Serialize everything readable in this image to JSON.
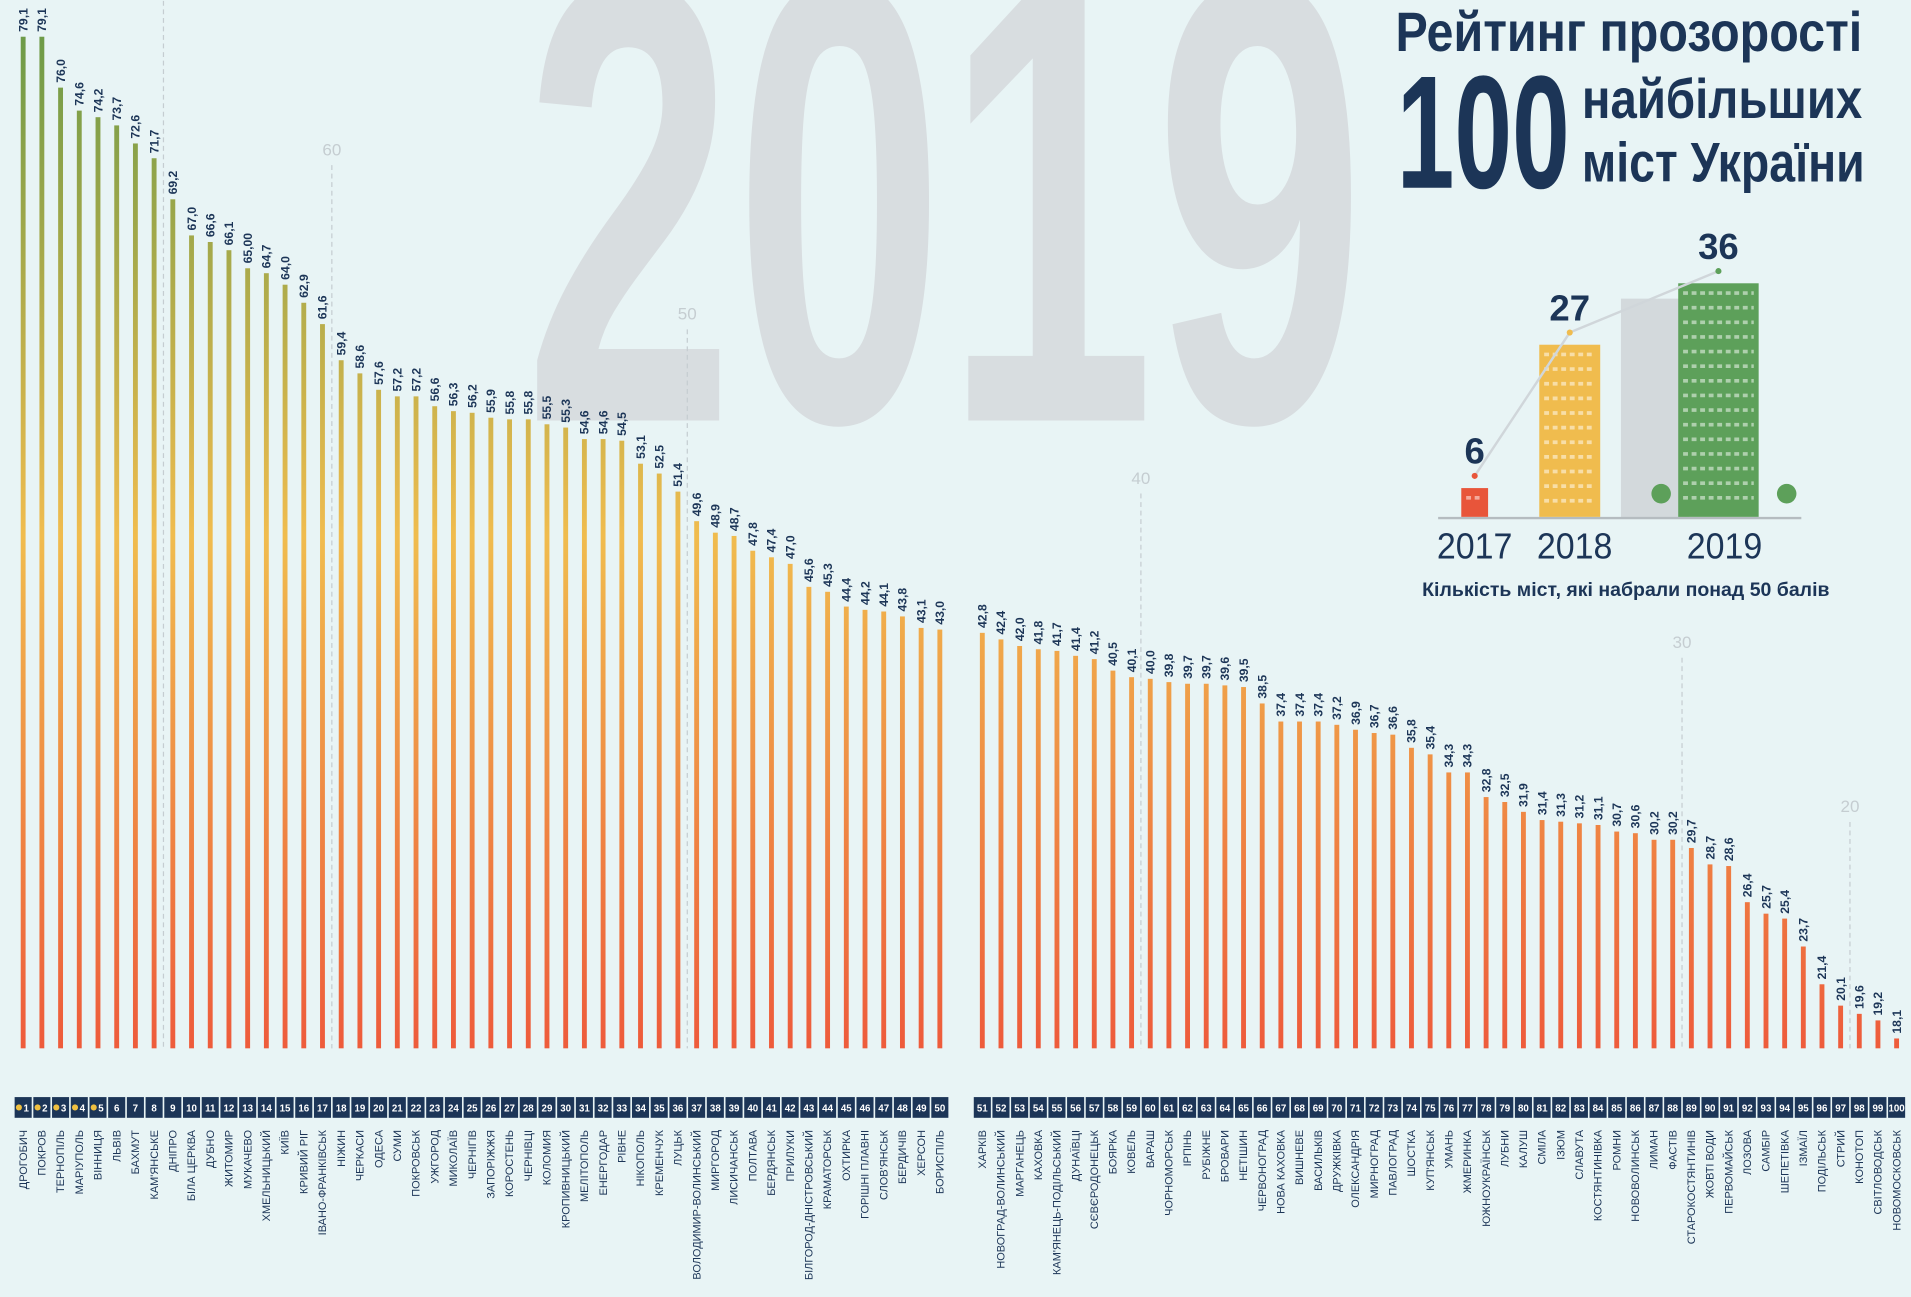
{
  "chart_data": [
    {
      "type": "bar",
      "watermark": "2019",
      "title": "Рейтинг прозорості",
      "title_number": "100",
      "title_line2": "найбільших",
      "title_line3": "міст України",
      "categories": [
        "ДРОГОБИЧ",
        "ПОКРОВ",
        "ТЕРНОПІЛЬ",
        "МАРІУПОЛЬ",
        "ВІННИЦЯ",
        "ЛЬВІВ",
        "БАХМУТ",
        "КАМ'ЯНСЬКЕ",
        "ДНІПРО",
        "БІЛА ЦЕРКВА",
        "ДУБНО",
        "ЖИТОМИР",
        "МУКАЧЕВО",
        "ХМЕЛЬНИЦЬКИЙ",
        "КИЇВ",
        "КРИВИЙ РІГ",
        "ІВАНО-ФРАНКІВСЬК",
        "НІЖИН",
        "ЧЕРКАСИ",
        "ОДЕСА",
        "СУМИ",
        "ПОКРОВСЬК",
        "УЖГОРОД",
        "МИКОЛАЇВ",
        "ЧЕРНІГІВ",
        "ЗАПОРІЖЖЯ",
        "КОРОСТЕНЬ",
        "ЧЕРНІВЦІ",
        "КОЛОМИЯ",
        "КРОПИВНИЦЬКИЙ",
        "МЕЛІТОПОЛЬ",
        "ЕНЕРГОДАР",
        "РІВНЕ",
        "НІКОПОЛЬ",
        "КРЕМЕНЧУК",
        "ЛУЦЬК",
        "ВОЛОДИМИР-ВОЛИНСЬКИЙ",
        "МИРГОРОД",
        "ЛИСИЧАНСЬК",
        "ПОЛТАВА",
        "БЕРДЯНСЬК",
        "ПРИЛУКИ",
        "БІЛГОРОД-ДНІСТРОВСЬКИЙ",
        "КРАМАТОРСЬК",
        "ОХТИРКА",
        "ГОРІШНІ ПЛАВНІ",
        "СЛОВ'ЯНСЬК",
        "БЕРДИЧІВ",
        "ХЕРСОН",
        "БОРИСПІЛЬ",
        "ХАРКІВ",
        "НОВОГРАД-ВОЛИНСЬКИЙ",
        "МАРГАНЕЦЬ",
        "КАХОВКА",
        "КАМ'ЯНЕЦЬ-ПОДІЛЬСЬКИЙ",
        "ДУНАЇВЦІ",
        "СЄВЄРОДОНЕЦЬК",
        "БОЯРКА",
        "КОВЕЛЬ",
        "ВАРАШ",
        "ЧОРНОМОРСЬК",
        "ІРПІНЬ",
        "РУБІЖНЕ",
        "БРОВАРИ",
        "НЕТІШИН",
        "ЧЕРВОНОГРАД",
        "НОВА КАХОВКА",
        "ВИШНЕВЕ",
        "ВАСИЛЬКІВ",
        "ДРУЖКІВКА",
        "ОЛЕКСАНДРІЯ",
        "МИРНОГРАД",
        "ПАВЛОГРАД",
        "ШОСТКА",
        "КУП'ЯНСЬК",
        "УМАНЬ",
        "ЖМЕРИНКА",
        "ЮЖНОУКРАЇНСЬК",
        "ЛУБНИ",
        "КАЛУШ",
        "СМІЛА",
        "ІЗЮМ",
        "СЛАВУТА",
        "КОСТЯНТИНІВКА",
        "РОМНИ",
        "НОВОВОЛИНСЬК",
        "ЛИМАН",
        "ФАСТІВ",
        "СТАРОКОСТЯНТИНІВ",
        "ЖОВТІ ВОДИ",
        "ПЕРВОМАЙСЬК",
        "ЛОЗОВА",
        "САМБІР",
        "ШЕПЕТІВКА",
        "ІЗМАЇЛ",
        "ПОДІЛЬСЬК",
        "СТРИЙ",
        "КОНОТОП",
        "СВІТЛОВОДСЬК",
        "НОВОМОСКОВСЬК"
      ],
      "ranks": [
        1,
        2,
        3,
        4,
        5,
        6,
        7,
        8,
        9,
        10,
        11,
        12,
        13,
        14,
        15,
        16,
        17,
        18,
        19,
        20,
        21,
        22,
        23,
        24,
        25,
        26,
        27,
        28,
        29,
        30,
        31,
        32,
        33,
        34,
        35,
        36,
        37,
        38,
        39,
        40,
        41,
        42,
        43,
        44,
        45,
        46,
        47,
        48,
        49,
        50,
        51,
        52,
        53,
        54,
        55,
        56,
        57,
        58,
        59,
        60,
        61,
        62,
        63,
        64,
        65,
        66,
        67,
        68,
        69,
        70,
        71,
        72,
        73,
        74,
        75,
        76,
        77,
        78,
        79,
        80,
        81,
        82,
        83,
        84,
        85,
        86,
        87,
        88,
        89,
        90,
        91,
        92,
        93,
        94,
        95,
        96,
        97,
        98,
        99,
        100
      ],
      "values": [
        79.1,
        79.1,
        76.0,
        74.6,
        74.2,
        73.7,
        72.6,
        71.7,
        69.2,
        67.0,
        66.6,
        66.1,
        65.0,
        64.7,
        64.0,
        62.9,
        61.6,
        59.4,
        58.6,
        57.6,
        57.2,
        57.2,
        56.6,
        56.3,
        56.2,
        55.9,
        55.8,
        55.8,
        55.5,
        55.3,
        54.6,
        54.6,
        54.5,
        53.1,
        52.5,
        51.4,
        49.6,
        48.9,
        48.7,
        47.8,
        47.4,
        47.0,
        45.6,
        45.3,
        44.4,
        44.2,
        44.1,
        43.8,
        43.1,
        43.0,
        42.8,
        42.4,
        42.0,
        41.8,
        41.7,
        41.4,
        41.2,
        40.5,
        40.1,
        40.0,
        39.8,
        39.7,
        39.7,
        39.6,
        39.5,
        38.5,
        37.4,
        37.4,
        37.4,
        37.2,
        36.9,
        36.7,
        36.6,
        35.8,
        35.4,
        34.3,
        34.3,
        32.8,
        32.5,
        31.9,
        31.4,
        31.3,
        31.2,
        31.1,
        30.7,
        30.6,
        30.2,
        30.2,
        29.7,
        28.7,
        28.6,
        26.4,
        25.7,
        25.4,
        23.7,
        21.4,
        20.1,
        19.6,
        19.2,
        18.1
      ],
      "value_labels": [
        "79,1",
        "79,1",
        "76,0",
        "74,6",
        "74,2",
        "73,7",
        "72,6",
        "71,7",
        "69,2",
        "67,0",
        "66,6",
        "66,1",
        "65,00",
        "64,7",
        "64,0",
        "62,9",
        "61,6",
        "59,4",
        "58,6",
        "57,6",
        "57,2",
        "57,2",
        "56,6",
        "56,3",
        "56,2",
        "55,9",
        "55,8",
        "55,8",
        "55,5",
        "55,3",
        "54,6",
        "54,6",
        "54,5",
        "53,1",
        "52,5",
        "51,4",
        "49,6",
        "48,9",
        "48,7",
        "47,8",
        "47,4",
        "47,0",
        "45,6",
        "45,3",
        "44,4",
        "44,2",
        "44,1",
        "43,8",
        "43,1",
        "43,0",
        "42,8",
        "42,4",
        "42,0",
        "41,8",
        "41,7",
        "41,4",
        "41,2",
        "40,5",
        "40,1",
        "40,0",
        "39,8",
        "39,7",
        "39,7",
        "39,6",
        "39,5",
        "38,5",
        "37,4",
        "37,4",
        "37,4",
        "37,2",
        "36,9",
        "36,7",
        "36,6",
        "35,8",
        "35,4",
        "34,3",
        "34,3",
        "32,8",
        "32,5",
        "31,9",
        "31,4",
        "31,3",
        "31,2",
        "31,1",
        "30,7",
        "30,6",
        "30,2",
        "30,2",
        "29,7",
        "28,7",
        "28,6",
        "26,4",
        "25,7",
        "25,4",
        "23,7",
        "21,4",
        "20,1",
        "19,6",
        "19,2",
        "18,1"
      ],
      "guides": [
        70,
        60,
        50,
        40,
        30,
        20
      ],
      "ylim": [
        17.5,
        80
      ],
      "colors": [
        "#6a9a48",
        "#f0bc4e",
        "#ee5b3b"
      ]
    },
    {
      "type": "line",
      "categories": [
        "2017",
        "2018",
        "2019"
      ],
      "values": [
        6,
        27,
        36
      ],
      "ylim": [
        0,
        40
      ],
      "colors": [
        "#e8553a",
        "#f0bc4e",
        "#5da05a"
      ],
      "caption": "Кількість міст, які набрали понад 50 балів"
    }
  ]
}
